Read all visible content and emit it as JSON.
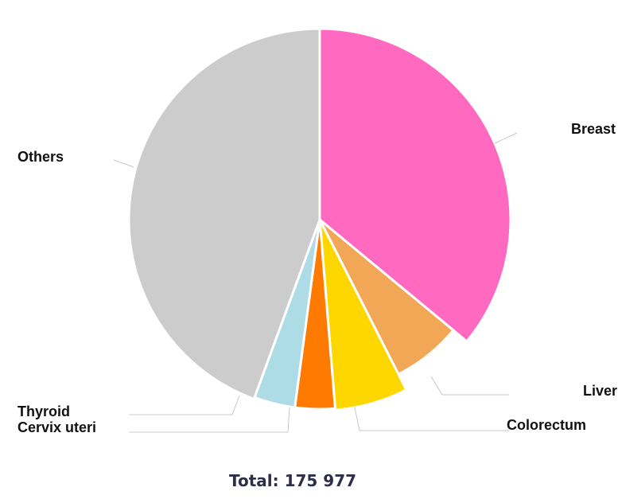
{
  "chart_data": {
    "type": "pie",
    "slices": [
      {
        "label": "Breast",
        "value": 36.0,
        "color": "#ff69c0"
      },
      {
        "label": "Liver",
        "value": 6.5,
        "color": "#f2a756"
      },
      {
        "label": "Colorectum",
        "value": 6.2,
        "color": "#ffd700"
      },
      {
        "label": "Cervix uteri",
        "value": 3.4,
        "color": "#ff7a00"
      },
      {
        "label": "Thyroid",
        "value": 3.5,
        "color": "#aedce6"
      },
      {
        "label": "Others",
        "value": 44.4,
        "color": "#cccccc"
      }
    ],
    "total_label": "Total: 175 977"
  }
}
